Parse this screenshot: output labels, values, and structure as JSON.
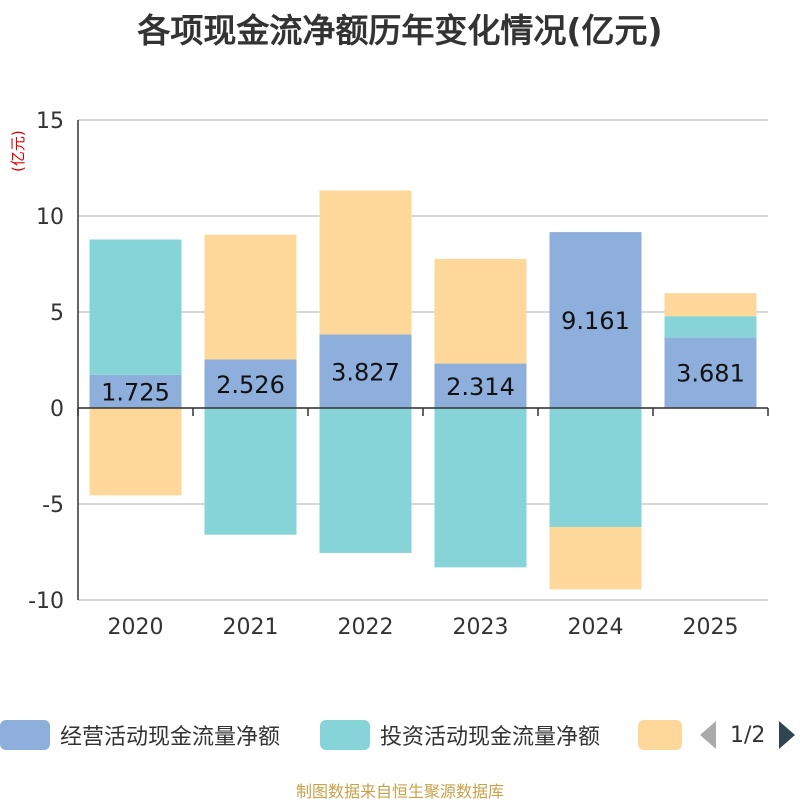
{
  "chart_data": {
    "type": "bar",
    "stacked": true,
    "title": "各项现金流净额历年变化情况(亿元)",
    "ylabel": "(亿元)",
    "xlabel": "",
    "categories": [
      "2020",
      "2021",
      "2022",
      "2023",
      "2024",
      "2025"
    ],
    "ylim": [
      -10,
      15
    ],
    "yticks": [
      -10,
      -5,
      0,
      5,
      10,
      15
    ],
    "grid": true,
    "series": [
      {
        "name": "经营活动现金流量净额",
        "color": "#8eaedb",
        "values": [
          1.725,
          2.526,
          3.827,
          2.314,
          9.161,
          3.681
        ]
      },
      {
        "name": "投资活动现金流量净额",
        "color": "#86d4d8",
        "values": [
          7.05,
          -6.6,
          -7.55,
          -8.3,
          -6.2,
          1.1
        ]
      },
      {
        "name": "",
        "color": "#fdd89a",
        "values": [
          -4.55,
          6.5,
          7.5,
          5.45,
          -3.25,
          1.2
        ]
      }
    ],
    "data_labels": [
      "1.725",
      "2.526",
      "3.827",
      "2.314",
      "9.161",
      "3.681"
    ]
  },
  "legend": {
    "items": [
      "经营活动现金流量净额",
      "投资活动现金流量净额",
      ""
    ],
    "page_indicator": "1/2"
  },
  "footer": "制图数据来自恒生聚源数据库"
}
